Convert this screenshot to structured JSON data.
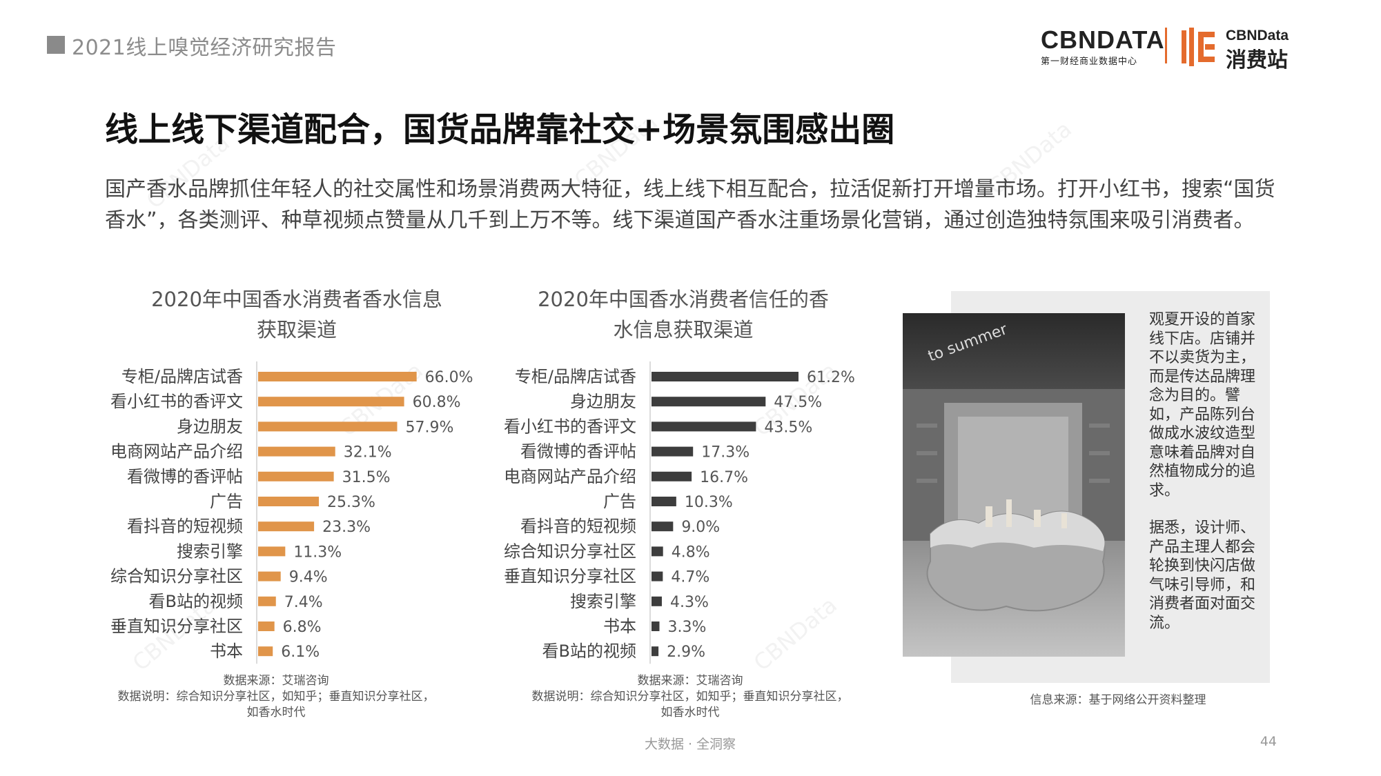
{
  "header": {
    "report_title": "2021线上嗅觉经济研究报告",
    "logo_left_main": "CBNDATA",
    "logo_left_sub": "第一财经商业数据中心",
    "logo_right_main": "CBNData",
    "logo_right_sub": "消费站",
    "accent_color": "#e46b2d"
  },
  "main_title": "线上线下渠道配合，国货品牌靠社交+场景氛围感出圈",
  "intro_text": "国产香水品牌抓住年轻人的社交属性和场景消费两大特征，线上线下相互配合，拉活促新打开增量市场。打开小红书，搜索“国货香水”，各类测评、种草视频点赞量从几千到上万不等。线下渠道国产香水注重场景化营销，通过创造独特氛围来吸引消费者。",
  "watermark": "CBNData",
  "chart_data": [
    {
      "type": "bar",
      "orientation": "horizontal",
      "title_line1": "2020年中国香水消费者香水信息",
      "title_line2": "获取渠道",
      "categories": [
        "专柜/品牌店试香",
        "看小红书的香评文",
        "身边朋友",
        "电商网站产品介绍",
        "看微博的香评帖",
        "广告",
        "看抖音的短视频",
        "搜索引擎",
        "综合知识分享社区",
        "看B站的视频",
        "垂直知识分享社区",
        "书本"
      ],
      "values": [
        66.0,
        60.8,
        57.9,
        32.1,
        31.5,
        25.3,
        23.3,
        11.3,
        9.4,
        7.4,
        6.8,
        6.1
      ],
      "labels": [
        "66.0%",
        "60.8%",
        "57.9%",
        "32.1%",
        "31.5%",
        "25.3%",
        "23.3%",
        "11.3%",
        "9.4%",
        "7.4%",
        "6.8%",
        "6.1%"
      ],
      "bar_color": "#e0954a",
      "xlim": [
        0,
        100
      ],
      "unit": "%",
      "source_line1": "数据来源：艾瑞咨询",
      "source_line2": "数据说明：综合知识分享社区，如知乎；垂直知识分享社区，",
      "source_line3": "如香水时代"
    },
    {
      "type": "bar",
      "orientation": "horizontal",
      "title_line1": "2020年中国香水消费者信任的香",
      "title_line2": "水信息获取渠道",
      "categories": [
        "专柜/品牌店试香",
        "身边朋友",
        "看小红书的香评文",
        "看微博的香评帖",
        "电商网站产品介绍",
        "广告",
        "看抖音的短视频",
        "综合知识分享社区",
        "垂直知识分享社区",
        "搜索引擎",
        "书本",
        "看B站的视频"
      ],
      "values": [
        61.2,
        47.5,
        43.5,
        17.3,
        16.7,
        10.3,
        9.0,
        4.8,
        4.7,
        4.3,
        3.3,
        2.9
      ],
      "labels": [
        "61.2%",
        "47.5%",
        "43.5%",
        "17.3%",
        "16.7%",
        "10.3%",
        "9.0%",
        "4.8%",
        "4.7%",
        "4.3%",
        "3.3%",
        "2.9%"
      ],
      "bar_color": "#3d3d3d",
      "xlim": [
        0,
        100
      ],
      "unit": "%",
      "source_line1": "数据来源：艾瑞咨询",
      "source_line2": "数据说明：综合知识分享社区，如知乎；垂直知识分享社区，",
      "source_line3": "如香水时代"
    }
  ],
  "side_panel": {
    "photo_sign": "to summer",
    "paragraph1": "观夏开设的首家线下店。店铺并不以卖货为主，而是传达品牌理念为目的。譬如，产品陈列台做成水波纹造型意味着品牌对自然植物成分的追求。",
    "paragraph2": "据悉，设计师、产品主理人都会轮换到快闪店做气味引导师，和消费者面对面交流。",
    "source": "信息来源：基于网络公开资料整理"
  },
  "footer": {
    "center_text": "大数据 · 全洞察",
    "page_number": "44"
  }
}
